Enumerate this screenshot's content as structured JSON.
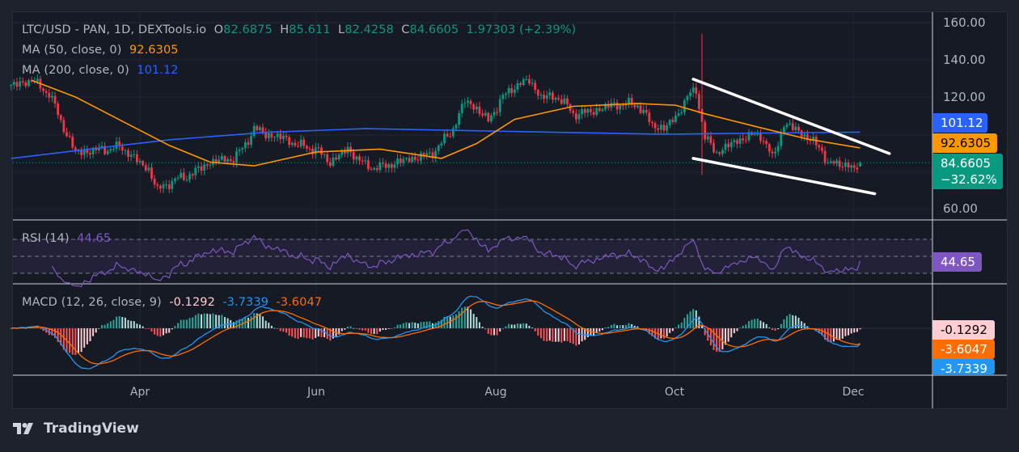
{
  "legend": {
    "symbol": "LTC/USD - PAN, 1D, DEXTools.io",
    "o_label": "O",
    "o_value": "82.6875",
    "h_label": "H",
    "h_value": "85.611",
    "l_label": "L",
    "l_value": "82.4258",
    "c_label": "C",
    "c_value": "84.6605",
    "change": "1.97303 (+2.39%)",
    "ma50_label": "MA (50, close, 0)",
    "ma50_value": "92.6305",
    "ma200_label": "MA (200, close, 0)",
    "ma200_value": "101.12",
    "rsi_label": "RSI (14)",
    "rsi_value": "44.65",
    "macd_label": "MACD (12, 26, close, 9)",
    "macd_hist": "-0.1292",
    "macd_line": "-3.7339",
    "macd_signal": "-3.6047"
  },
  "badges": {
    "ma200": "101.12",
    "ma50": "92.6305",
    "price": "84.6605",
    "price_change": "−32.62%",
    "rsi": "44.65",
    "macd_hist": "-0.1292",
    "macd_signal": "-3.6047",
    "macd_line": "-3.7339"
  },
  "colors": {
    "up": "#089981",
    "down": "#f23645",
    "ma50": "#ff9800",
    "ma200": "#2962ff",
    "rsi": "#7e57c2",
    "macd": "#2196f3",
    "signal": "#ff6d00",
    "trendline": "#ffffff"
  },
  "branding": "TradingView",
  "chart_data": {
    "type": "candlestick",
    "ylim": [
      55,
      165
    ],
    "y_ticks": [
      "160.00",
      "140.00",
      "120.00",
      "60.00"
    ],
    "x_ticks": [
      "Apr",
      "Jun",
      "Aug",
      "Oct",
      "Dec"
    ],
    "grid": true,
    "close_path": [
      [
        "02-17",
        126
      ],
      [
        "02-24",
        129
      ],
      [
        "03-01",
        122
      ],
      [
        "03-05",
        107
      ],
      [
        "03-10",
        90
      ],
      [
        "03-20",
        92
      ],
      [
        "03-26",
        93
      ],
      [
        "03-30",
        87
      ],
      [
        "04-04",
        81
      ],
      [
        "04-07",
        70
      ],
      [
        "04-11",
        74
      ],
      [
        "04-19",
        79
      ],
      [
        "04-25",
        85
      ],
      [
        "05-03",
        87
      ],
      [
        "05-06",
        92
      ],
      [
        "05-10",
        103
      ],
      [
        "05-14",
        100
      ],
      [
        "05-20",
        98
      ],
      [
        "05-25",
        94
      ],
      [
        "05-31",
        92
      ],
      [
        "06-05",
        85
      ],
      [
        "06-11",
        92
      ],
      [
        "06-17",
        83
      ],
      [
        "06-22",
        82
      ],
      [
        "06-28",
        85
      ],
      [
        "07-03",
        87
      ],
      [
        "07-09",
        89
      ],
      [
        "07-13",
        95
      ],
      [
        "07-17",
        103
      ],
      [
        "07-21",
        118
      ],
      [
        "07-25",
        114
      ],
      [
        "07-29",
        107
      ],
      [
        "08-02",
        118
      ],
      [
        "08-07",
        126
      ],
      [
        "08-12",
        129
      ],
      [
        "08-16",
        120
      ],
      [
        "08-22",
        120
      ],
      [
        "08-27",
        111
      ],
      [
        "09-02",
        112
      ],
      [
        "09-10",
        116
      ],
      [
        "09-18",
        116
      ],
      [
        "09-23",
        105
      ],
      [
        "09-27",
        103
      ],
      [
        "10-01",
        109
      ],
      [
        "10-05",
        120
      ],
      [
        "10-08",
        124
      ],
      [
        "10-11",
        98
      ],
      [
        "10-15",
        90
      ],
      [
        "10-19",
        94
      ],
      [
        "10-24",
        98
      ],
      [
        "10-30",
        100
      ],
      [
        "11-03",
        87
      ],
      [
        "11-07",
        105
      ],
      [
        "11-11",
        103
      ],
      [
        "11-15",
        98
      ],
      [
        "11-20",
        92
      ],
      [
        "11-22",
        83
      ],
      [
        "11-26",
        85
      ],
      [
        "12-01",
        81
      ],
      [
        "12-03",
        84.6605
      ]
    ],
    "wicks": [
      {
        "date": "10-10",
        "high": 154,
        "low": 78
      }
    ],
    "last_candle": {
      "open": 82.6875,
      "high": 85.611,
      "low": 82.4258,
      "close": 84.6605
    },
    "ma50": [
      [
        "02-24",
        129
      ],
      [
        "03-10",
        120
      ],
      [
        "03-26",
        107
      ],
      [
        "04-11",
        94
      ],
      [
        "04-25",
        85
      ],
      [
        "05-10",
        83
      ],
      [
        "05-31",
        90.4
      ],
      [
        "06-22",
        92
      ],
      [
        "07-13",
        87
      ],
      [
        "07-25",
        95
      ],
      [
        "08-07",
        108
      ],
      [
        "08-27",
        115
      ],
      [
        "09-18",
        116.5
      ],
      [
        "10-01",
        115.6
      ],
      [
        "10-11",
        111
      ],
      [
        "10-30",
        103.5
      ],
      [
        "11-15",
        97.4
      ],
      [
        "12-03",
        92.6305
      ]
    ],
    "ma200": [
      [
        "02-17",
        87
      ],
      [
        "03-20",
        93
      ],
      [
        "04-11",
        97
      ],
      [
        "05-14",
        101
      ],
      [
        "06-17",
        103
      ],
      [
        "07-21",
        102
      ],
      [
        "08-22",
        101
      ],
      [
        "09-27",
        100
      ],
      [
        "10-24",
        100.5
      ],
      [
        "12-03",
        101.12
      ]
    ],
    "trendlines": [
      {
        "from": [
          "10-07",
          129.6
        ],
        "to": [
          "12-13",
          89.6
        ]
      },
      {
        "from": [
          "10-07",
          87
        ],
        "to": [
          "12-08",
          68
        ]
      }
    ],
    "rsi": {
      "upper": 70,
      "middle": 50,
      "lower": 30,
      "last": 44.65
    },
    "macd": {
      "hist": -0.1292,
      "macd": -3.7339,
      "signal": -3.6047
    }
  }
}
